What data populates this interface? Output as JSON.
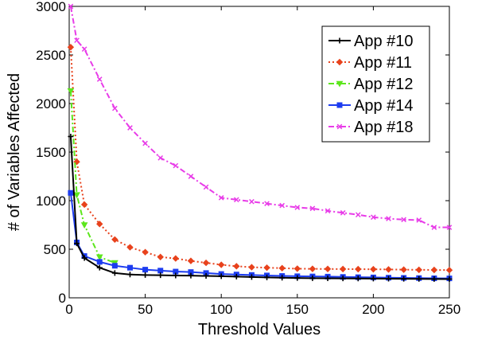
{
  "chart_data": {
    "type": "line",
    "title": "",
    "xlabel": "Threshold Values",
    "ylabel": "# of Variables Affected",
    "xlim": [
      0,
      250
    ],
    "ylim": [
      0,
      3000
    ],
    "xticks": [
      "0",
      "50",
      "100",
      "150",
      "200",
      "250"
    ],
    "yticks": [
      "0",
      "500",
      "1000",
      "1500",
      "2000",
      "2500",
      "3000"
    ],
    "grid": false,
    "legend_position": "top-right",
    "series": [
      {
        "name": "App #10",
        "color": "#000000",
        "marker": "plus",
        "dash": "solid",
        "x": [
          1,
          5,
          10,
          20,
          30,
          40,
          50,
          60,
          70,
          80,
          90,
          100,
          110,
          120,
          130,
          140,
          150,
          160,
          170,
          180,
          190,
          200,
          210,
          220,
          230,
          240,
          250
        ],
        "y": [
          1660,
          560,
          410,
          310,
          255,
          240,
          235,
          233,
          230,
          228,
          225,
          222,
          218,
          214,
          210,
          207,
          204,
          202,
          201,
          200,
          199,
          198,
          197,
          196,
          195,
          194,
          193
        ]
      },
      {
        "name": "App #11",
        "color": "#e8421c",
        "marker": "diamond",
        "dash": "dotted",
        "x": [
          1,
          5,
          10,
          20,
          30,
          40,
          50,
          60,
          70,
          80,
          90,
          100,
          110,
          120,
          130,
          140,
          150,
          160,
          170,
          180,
          190,
          200,
          210,
          220,
          230,
          240,
          250
        ],
        "y": [
          2580,
          1400,
          960,
          760,
          600,
          520,
          470,
          420,
          405,
          380,
          360,
          340,
          325,
          315,
          310,
          305,
          300,
          298,
          297,
          296,
          295,
          294,
          292,
          290,
          288,
          287,
          285
        ]
      },
      {
        "name": "App #12",
        "color": "#5ce61c",
        "marker": "triangle-down",
        "dash": "dashdot",
        "x": [
          1,
          5,
          10,
          20,
          30
        ],
        "y": [
          2130,
          1060,
          750,
          420,
          360
        ]
      },
      {
        "name": "App #14",
        "color": "#1c3cf0",
        "marker": "square",
        "dash": "solid",
        "x": [
          1,
          5,
          10,
          20,
          30,
          40,
          50,
          60,
          70,
          80,
          90,
          100,
          110,
          120,
          130,
          140,
          150,
          160,
          170,
          180,
          190,
          200,
          210,
          220,
          230,
          240,
          250
        ],
        "y": [
          1080,
          570,
          430,
          370,
          330,
          310,
          290,
          280,
          270,
          265,
          255,
          245,
          240,
          235,
          230,
          225,
          222,
          220,
          218,
          215,
          212,
          210,
          207,
          205,
          203,
          201,
          200
        ]
      },
      {
        "name": "App #18",
        "color": "#e83ce8",
        "marker": "x",
        "dash": "dashdot",
        "x": [
          1,
          5,
          10,
          20,
          30,
          40,
          50,
          60,
          70,
          80,
          90,
          100,
          110,
          120,
          130,
          140,
          150,
          160,
          170,
          180,
          190,
          200,
          210,
          220,
          230,
          240,
          250
        ],
        "y": [
          3000,
          2650,
          2560,
          2250,
          1950,
          1750,
          1590,
          1440,
          1360,
          1250,
          1140,
          1030,
          1010,
          990,
          970,
          950,
          930,
          920,
          895,
          875,
          855,
          830,
          815,
          805,
          800,
          725,
          725
        ]
      }
    ]
  }
}
